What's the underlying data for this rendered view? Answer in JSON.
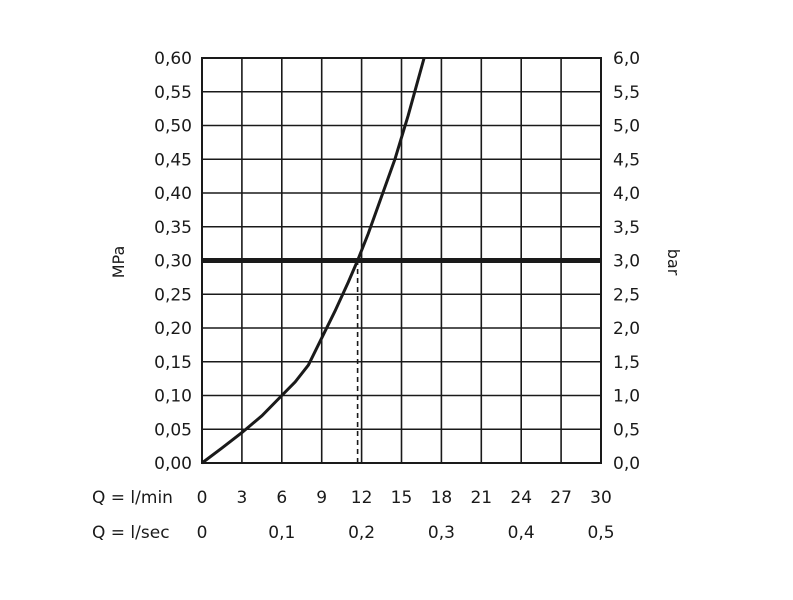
{
  "chart_data": {
    "type": "line",
    "left_axis": {
      "label": "MPa",
      "ylim": [
        0,
        0.6
      ],
      "ticks": [
        "0,00",
        "0,05",
        "0,10",
        "0,15",
        "0,20",
        "0,25",
        "0,30",
        "0,35",
        "0,40",
        "0,45",
        "0,50",
        "0,55",
        "0,60"
      ]
    },
    "right_axis": {
      "label": "bar",
      "ylim": [
        0,
        6
      ],
      "ticks": [
        "0,0",
        "0,5",
        "1,0",
        "1,5",
        "2,0",
        "2,5",
        "3,0",
        "3,5",
        "4,0",
        "4,5",
        "5,0",
        "5,5",
        "6,0"
      ]
    },
    "x_axis_lmin": {
      "label": "Q = l/min",
      "xlim": [
        0,
        30
      ],
      "ticks": [
        "0",
        "3",
        "6",
        "9",
        "12",
        "15",
        "18",
        "21",
        "24",
        "27",
        "30"
      ]
    },
    "x_axis_lsec": {
      "label": "Q = l/sec",
      "ticks": [
        {
          "text": "0",
          "value": 0
        },
        {
          "text": "0,1",
          "value": 0.1
        },
        {
          "text": "0,2",
          "value": 0.2
        },
        {
          "text": "0,3",
          "value": 0.3
        },
        {
          "text": "0,4",
          "value": 0.4
        },
        {
          "text": "0,5",
          "value": 0.5
        }
      ]
    },
    "series": [
      {
        "x": [
          0,
          1.5,
          3,
          4.5,
          6,
          7,
          8,
          9,
          10,
          11,
          11.7,
          12.5,
          13.5,
          14.5,
          15.5,
          16.7
        ],
        "y": [
          0,
          0.022,
          0.045,
          0.07,
          0.1,
          0.12,
          0.145,
          0.185,
          0.225,
          0.268,
          0.3,
          0.34,
          0.395,
          0.45,
          0.515,
          0.6
        ]
      }
    ],
    "reference_line": {
      "y": 0.3
    },
    "marker_line": {
      "x": 11.7,
      "from_y": 0,
      "to_y": 0.3,
      "style": "dashed"
    },
    "grid": true
  }
}
